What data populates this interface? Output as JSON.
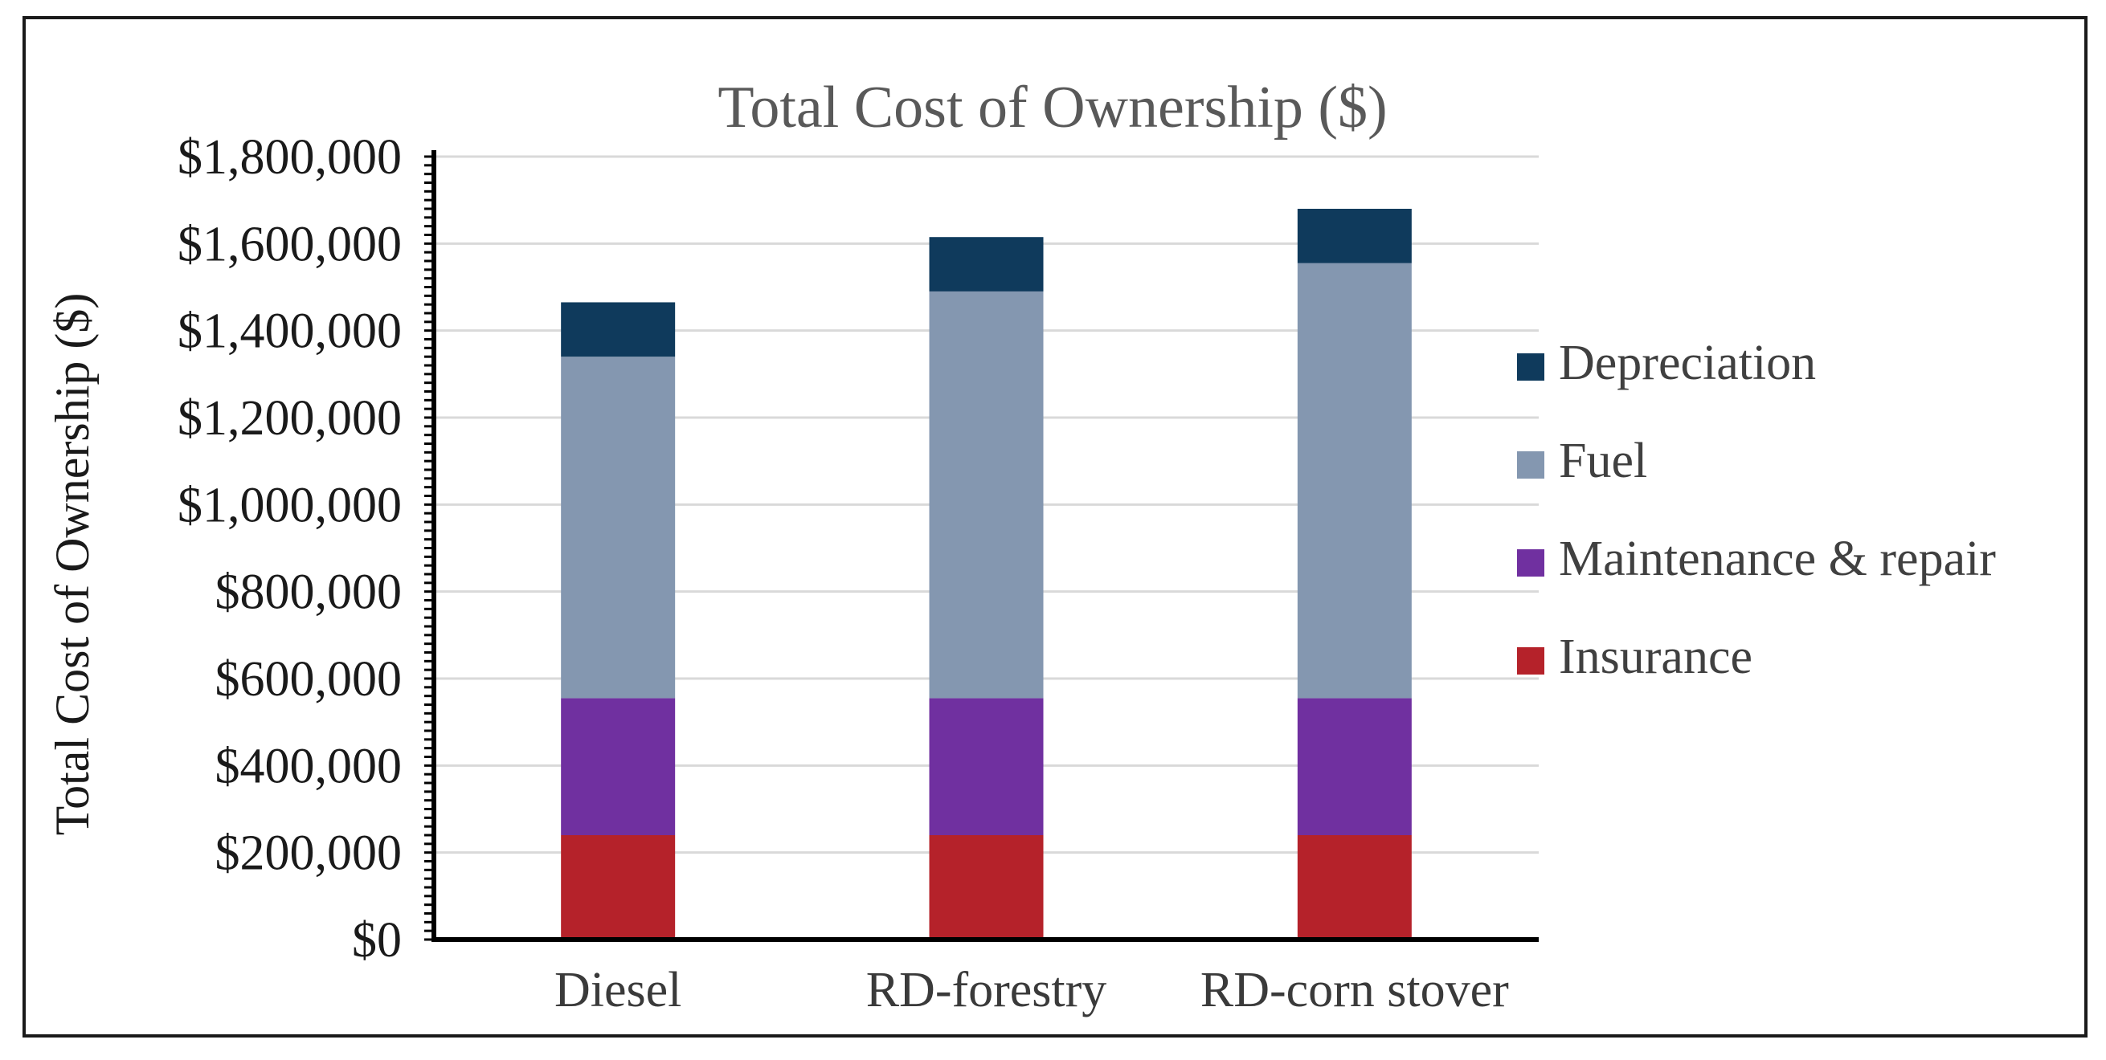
{
  "chart_data": {
    "type": "bar",
    "stacked": true,
    "title": "Total Cost of Ownership ($)",
    "xlabel": "",
    "ylabel": "Total Cost of Ownership ($)",
    "ylim": [
      0,
      1800000
    ],
    "yticks": [
      0,
      200000,
      400000,
      600000,
      800000,
      1000000,
      1200000,
      1400000,
      1600000,
      1800000
    ],
    "ytick_labels": [
      "$0",
      "$200,000",
      "$400,000",
      "$600,000",
      "$800,000",
      "$1,000,000",
      "$1,200,000",
      "$1,400,000",
      "$1,600,000",
      "$1,800,000"
    ],
    "grid": true,
    "legend_position": "right",
    "categories": [
      "Diesel",
      "RD-forestry",
      "RD-corn stover"
    ],
    "series": [
      {
        "name": "Insurance",
        "color": "#B5222A",
        "values": [
          240000,
          240000,
          240000
        ]
      },
      {
        "name": "Maintenance & repair",
        "color": "#7030A0",
        "values": [
          315000,
          315000,
          315000
        ]
      },
      {
        "name": "Fuel",
        "color": "#8497B0",
        "values": [
          785000,
          935000,
          1000000
        ]
      },
      {
        "name": "Depreciation",
        "color": "#0F3A5C",
        "values": [
          125000,
          125000,
          125000
        ]
      }
    ],
    "legend_order": [
      "Depreciation",
      "Fuel",
      "Maintenance & repair",
      "Insurance"
    ]
  }
}
